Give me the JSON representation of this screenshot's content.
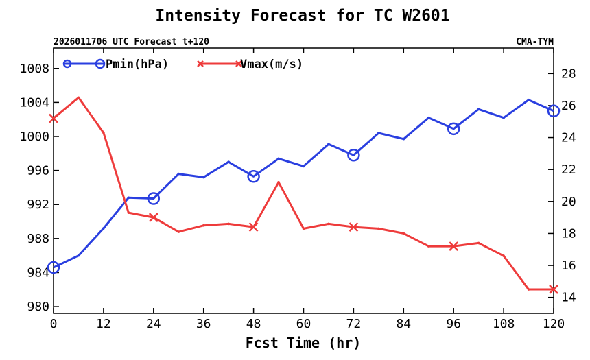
{
  "chart_data": {
    "type": "line",
    "title": "Intensity Forecast for TC W2601",
    "subtitle_left": "2026011706 UTC Forecast t+120",
    "subtitle_right": "CMA-TYM",
    "xlabel": "Fcst Time (hr)",
    "ylabel": "",
    "y2label": "",
    "x": [
      0,
      6,
      12,
      18,
      24,
      30,
      36,
      42,
      48,
      54,
      60,
      66,
      72,
      78,
      84,
      90,
      96,
      102,
      108,
      114,
      120
    ],
    "xlim": [
      0,
      120
    ],
    "xticks": [
      "0",
      "12",
      "24",
      "36",
      "48",
      "60",
      "72",
      "84",
      "96",
      "108",
      "120"
    ],
    "ylim": [
      979.2,
      1010.4
    ],
    "yticks": [
      "980",
      "984",
      "988",
      "992",
      "996",
      "1000",
      "1004",
      "1008"
    ],
    "y2lim": [
      13,
      29.6
    ],
    "y2ticks": [
      "14",
      "16",
      "18",
      "20",
      "22",
      "24",
      "26",
      "28"
    ],
    "legend_position": "top-left",
    "series": [
      {
        "name": "Pmin(hPa)",
        "axis": "left",
        "color": "#2a3fe0",
        "marker": "circle",
        "marker_x": [
          0,
          24,
          48,
          72,
          96,
          120
        ],
        "values": [
          984.6,
          986.0,
          989.2,
          992.8,
          992.7,
          995.6,
          995.2,
          997.0,
          995.3,
          997.4,
          996.5,
          999.1,
          997.8,
          1000.4,
          999.7,
          1002.2,
          1000.9,
          1003.2,
          1002.2,
          1004.3,
          1003.0
        ]
      },
      {
        "name": "Vmax(m/s)",
        "axis": "right",
        "color": "#ee3b3b",
        "marker": "x",
        "marker_x": [
          0,
          24,
          48,
          72,
          96,
          120
        ],
        "values": [
          25.2,
          26.5,
          24.3,
          19.3,
          19.0,
          18.1,
          18.5,
          18.6,
          18.4,
          21.2,
          18.3,
          18.6,
          18.4,
          18.3,
          18.0,
          17.2,
          17.2,
          17.4,
          16.6,
          14.5,
          14.5
        ]
      }
    ]
  }
}
